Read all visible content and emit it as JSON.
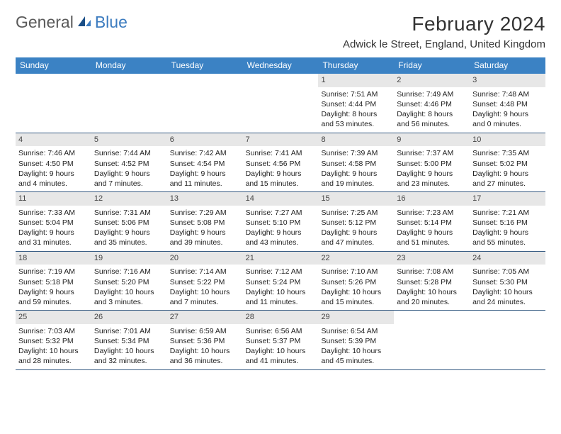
{
  "logo": {
    "general": "General",
    "blue": "Blue"
  },
  "title": "February 2024",
  "location": "Adwick le Street, England, United Kingdom",
  "colors": {
    "header_bg": "#3b82c4",
    "header_text": "#ffffff",
    "daynum_bg": "#e7e7e7",
    "week_border": "#355a82",
    "logo_grey": "#5a5a5a",
    "logo_blue": "#3b7bbf"
  },
  "dow": [
    "Sunday",
    "Monday",
    "Tuesday",
    "Wednesday",
    "Thursday",
    "Friday",
    "Saturday"
  ],
  "weeks": [
    [
      null,
      null,
      null,
      null,
      {
        "n": "1",
        "sr": "7:51 AM",
        "ss": "4:44 PM",
        "dl": "8 hours and 53 minutes."
      },
      {
        "n": "2",
        "sr": "7:49 AM",
        "ss": "4:46 PM",
        "dl": "8 hours and 56 minutes."
      },
      {
        "n": "3",
        "sr": "7:48 AM",
        "ss": "4:48 PM",
        "dl": "9 hours and 0 minutes."
      }
    ],
    [
      {
        "n": "4",
        "sr": "7:46 AM",
        "ss": "4:50 PM",
        "dl": "9 hours and 4 minutes."
      },
      {
        "n": "5",
        "sr": "7:44 AM",
        "ss": "4:52 PM",
        "dl": "9 hours and 7 minutes."
      },
      {
        "n": "6",
        "sr": "7:42 AM",
        "ss": "4:54 PM",
        "dl": "9 hours and 11 minutes."
      },
      {
        "n": "7",
        "sr": "7:41 AM",
        "ss": "4:56 PM",
        "dl": "9 hours and 15 minutes."
      },
      {
        "n": "8",
        "sr": "7:39 AM",
        "ss": "4:58 PM",
        "dl": "9 hours and 19 minutes."
      },
      {
        "n": "9",
        "sr": "7:37 AM",
        "ss": "5:00 PM",
        "dl": "9 hours and 23 minutes."
      },
      {
        "n": "10",
        "sr": "7:35 AM",
        "ss": "5:02 PM",
        "dl": "9 hours and 27 minutes."
      }
    ],
    [
      {
        "n": "11",
        "sr": "7:33 AM",
        "ss": "5:04 PM",
        "dl": "9 hours and 31 minutes."
      },
      {
        "n": "12",
        "sr": "7:31 AM",
        "ss": "5:06 PM",
        "dl": "9 hours and 35 minutes."
      },
      {
        "n": "13",
        "sr": "7:29 AM",
        "ss": "5:08 PM",
        "dl": "9 hours and 39 minutes."
      },
      {
        "n": "14",
        "sr": "7:27 AM",
        "ss": "5:10 PM",
        "dl": "9 hours and 43 minutes."
      },
      {
        "n": "15",
        "sr": "7:25 AM",
        "ss": "5:12 PM",
        "dl": "9 hours and 47 minutes."
      },
      {
        "n": "16",
        "sr": "7:23 AM",
        "ss": "5:14 PM",
        "dl": "9 hours and 51 minutes."
      },
      {
        "n": "17",
        "sr": "7:21 AM",
        "ss": "5:16 PM",
        "dl": "9 hours and 55 minutes."
      }
    ],
    [
      {
        "n": "18",
        "sr": "7:19 AM",
        "ss": "5:18 PM",
        "dl": "9 hours and 59 minutes."
      },
      {
        "n": "19",
        "sr": "7:16 AM",
        "ss": "5:20 PM",
        "dl": "10 hours and 3 minutes."
      },
      {
        "n": "20",
        "sr": "7:14 AM",
        "ss": "5:22 PM",
        "dl": "10 hours and 7 minutes."
      },
      {
        "n": "21",
        "sr": "7:12 AM",
        "ss": "5:24 PM",
        "dl": "10 hours and 11 minutes."
      },
      {
        "n": "22",
        "sr": "7:10 AM",
        "ss": "5:26 PM",
        "dl": "10 hours and 15 minutes."
      },
      {
        "n": "23",
        "sr": "7:08 AM",
        "ss": "5:28 PM",
        "dl": "10 hours and 20 minutes."
      },
      {
        "n": "24",
        "sr": "7:05 AM",
        "ss": "5:30 PM",
        "dl": "10 hours and 24 minutes."
      }
    ],
    [
      {
        "n": "25",
        "sr": "7:03 AM",
        "ss": "5:32 PM",
        "dl": "10 hours and 28 minutes."
      },
      {
        "n": "26",
        "sr": "7:01 AM",
        "ss": "5:34 PM",
        "dl": "10 hours and 32 minutes."
      },
      {
        "n": "27",
        "sr": "6:59 AM",
        "ss": "5:36 PM",
        "dl": "10 hours and 36 minutes."
      },
      {
        "n": "28",
        "sr": "6:56 AM",
        "ss": "5:37 PM",
        "dl": "10 hours and 41 minutes."
      },
      {
        "n": "29",
        "sr": "6:54 AM",
        "ss": "5:39 PM",
        "dl": "10 hours and 45 minutes."
      },
      null,
      null
    ]
  ],
  "labels": {
    "sunrise": "Sunrise:",
    "sunset": "Sunset:",
    "daylight": "Daylight:"
  }
}
